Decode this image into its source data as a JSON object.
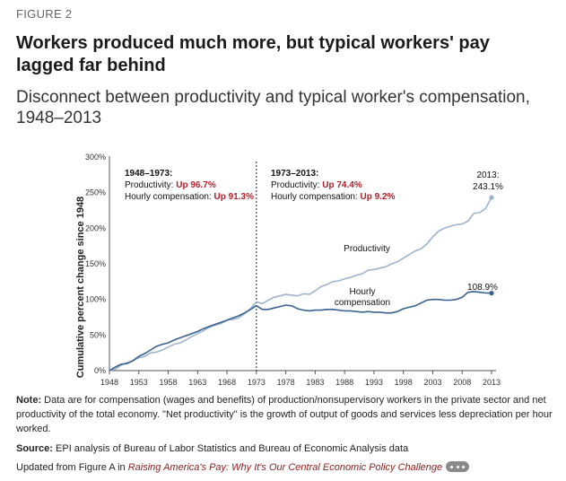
{
  "figure_label": "FIGURE 2",
  "title": "Workers produced much more, but typical workers' pay lagged far behind",
  "subtitle": "Disconnect between productivity and typical worker's compensation, 1948–2013",
  "colors": {
    "productivity": "#9fb4cc",
    "compensation": "#3a6290",
    "highlight": "#b0202a"
  },
  "chart_data": {
    "type": "line",
    "ylabel": "Cumulative percent change since 1948",
    "xlim": [
      1948,
      2013
    ],
    "ylim": [
      0,
      300
    ],
    "yticks": [
      0,
      50,
      100,
      150,
      200,
      250,
      300
    ],
    "ytick_labels": [
      "0%",
      "50%",
      "100%",
      "150%",
      "200%",
      "250%",
      "300%"
    ],
    "xticks": [
      1948,
      1953,
      1958,
      1963,
      1968,
      1973,
      1978,
      1983,
      1988,
      1993,
      1998,
      2003,
      2008,
      2013
    ],
    "xtick_labels": [
      "1948",
      "1953",
      "1958",
      "1963",
      "1968",
      "1973",
      "1978",
      "1983",
      "1988",
      "1993",
      "1998",
      "2003",
      "2008",
      "2013"
    ],
    "divider_x": 1973,
    "grid": false,
    "annotations": {
      "period1": {
        "heading": "1948–1973:",
        "prod_label": "Productivity: ",
        "prod_value": "Up 96.7%",
        "comp_label": "Hourly compensation: ",
        "comp_value": "Up 91.3%"
      },
      "period2": {
        "heading": "1973–2013:",
        "prod_label": "Productivity: ",
        "prod_value": "Up 74.4%",
        "comp_label": "Hourly compensation: ",
        "comp_value": "Up 9.2%"
      },
      "prod_end_line1": "2013:",
      "prod_end_line2": "243.1%",
      "comp_end": "108.9%",
      "prod_series_label": "Productivity",
      "comp_series_label_line1": "Hourly",
      "comp_series_label_line2": "compensation"
    },
    "series": [
      {
        "name": "Productivity",
        "key": "productivity",
        "x": [
          1948,
          1949,
          1950,
          1951,
          1952,
          1953,
          1954,
          1955,
          1956,
          1957,
          1958,
          1959,
          1960,
          1961,
          1962,
          1963,
          1964,
          1965,
          1966,
          1967,
          1968,
          1969,
          1970,
          1971,
          1972,
          1973,
          1974,
          1975,
          1976,
          1977,
          1978,
          1979,
          1980,
          1981,
          1982,
          1983,
          1984,
          1985,
          1986,
          1987,
          1988,
          1989,
          1990,
          1991,
          1992,
          1993,
          1994,
          1995,
          1996,
          1997,
          1998,
          1999,
          2000,
          2001,
          2002,
          2003,
          2004,
          2005,
          2006,
          2007,
          2008,
          2009,
          2010,
          2011,
          2012,
          2013
        ],
        "y": [
          0,
          2,
          8,
          11,
          14,
          18,
          20,
          25,
          26,
          29,
          33,
          37,
          39,
          43,
          48,
          52,
          56,
          61,
          64,
          66,
          71,
          72,
          74,
          80,
          87,
          96.7,
          94,
          99,
          103,
          105,
          107,
          106,
          105,
          108,
          107,
          112,
          118,
          121,
          125,
          126,
          129,
          131,
          134,
          136,
          141,
          142,
          144,
          146,
          150,
          153,
          158,
          163,
          168,
          171,
          178,
          188,
          196,
          200,
          203,
          205,
          206,
          210,
          221,
          222,
          228,
          243.1
        ]
      },
      {
        "name": "Hourly compensation",
        "key": "compensation",
        "x": [
          1948,
          1949,
          1950,
          1951,
          1952,
          1953,
          1954,
          1955,
          1956,
          1957,
          1958,
          1959,
          1960,
          1961,
          1962,
          1963,
          1964,
          1965,
          1966,
          1967,
          1968,
          1969,
          1970,
          1971,
          1972,
          1973,
          1974,
          1975,
          1976,
          1977,
          1978,
          1979,
          1980,
          1981,
          1982,
          1983,
          1984,
          1985,
          1986,
          1987,
          1988,
          1989,
          1990,
          1991,
          1992,
          1993,
          1994,
          1995,
          1996,
          1997,
          1998,
          1999,
          2000,
          2001,
          2002,
          2003,
          2004,
          2005,
          2006,
          2007,
          2008,
          2009,
          2010,
          2011,
          2012,
          2013
        ],
        "y": [
          0,
          5,
          9,
          10,
          14,
          20,
          24,
          29,
          34,
          37,
          39,
          43,
          46,
          49,
          52,
          55,
          59,
          62,
          65,
          68,
          71,
          74,
          77,
          81,
          86,
          91.3,
          86,
          86,
          88,
          90,
          92,
          91,
          87,
          85,
          84,
          85,
          85,
          86,
          86,
          85,
          84,
          84,
          83,
          82,
          83,
          82,
          82,
          81,
          81,
          83,
          87,
          89,
          91,
          95,
          99,
          100,
          100,
          99,
          99,
          100,
          103,
          110,
          111,
          110,
          109,
          108.9
        ]
      }
    ]
  },
  "note_label": "Note:",
  "note_text": " Data are for compensation (wages and benefits) of production/nonsupervisory workers in the private sector and net productivity of the total economy. \"Net productivity\" is the growth of output of goods and services less depreciation per hour worked.",
  "source_label": "Source:",
  "source_text": " EPI analysis of Bureau of Labor Statistics and Bureau of Economic Analysis data",
  "updated_prefix": "Updated from Figure A in ",
  "updated_book": "Raising America's Pay: Why It's Our Central Economic Policy Challenge"
}
